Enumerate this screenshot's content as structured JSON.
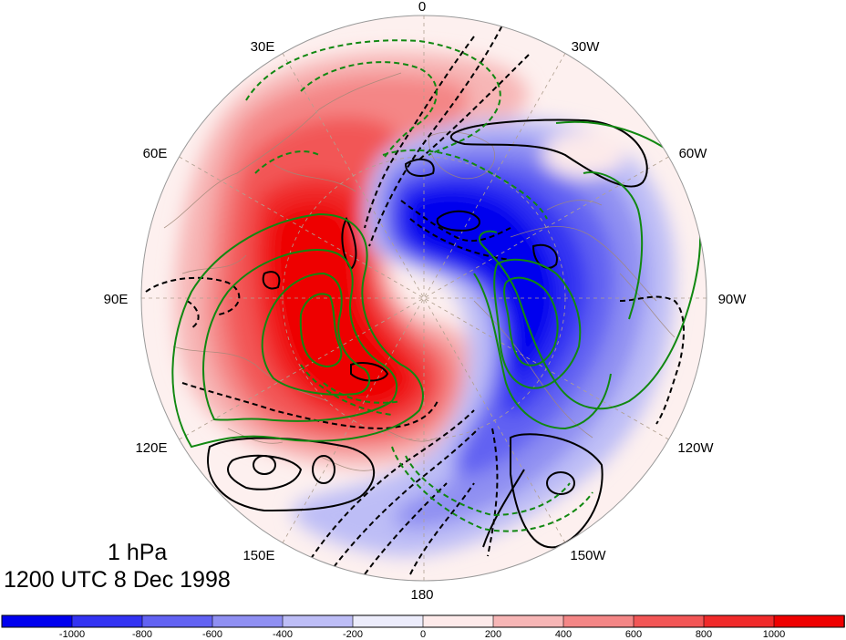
{
  "figure": {
    "level": "1 hPa",
    "valid_time": "1200 UTC 8 Dec 1998"
  },
  "longitude_labels": [
    "0",
    "30W",
    "60W",
    "90W",
    "120W",
    "150W",
    "180",
    "150E",
    "120E",
    "90E",
    "60E",
    "30E"
  ],
  "colorbar": {
    "tick_labels": [
      "-1000",
      "-800",
      "-600",
      "-400",
      "-200",
      "0",
      "200",
      "400",
      "600",
      "800",
      "1000"
    ],
    "colors": [
      "#0000ee",
      "#3333f2",
      "#6262f2",
      "#8f8ff2",
      "#bdbdf6",
      "#ececfb",
      "#fdeaea",
      "#f7b6b6",
      "#f48686",
      "#f25656",
      "#f02a2a",
      "#ee0000"
    ]
  },
  "colors": {
    "positive_max": "#ee0000",
    "negative_max": "#0000ee",
    "contour_black": "#000000",
    "contour_green": "#118811",
    "coastline": "#a08878",
    "gridline": "#b0a090"
  }
}
